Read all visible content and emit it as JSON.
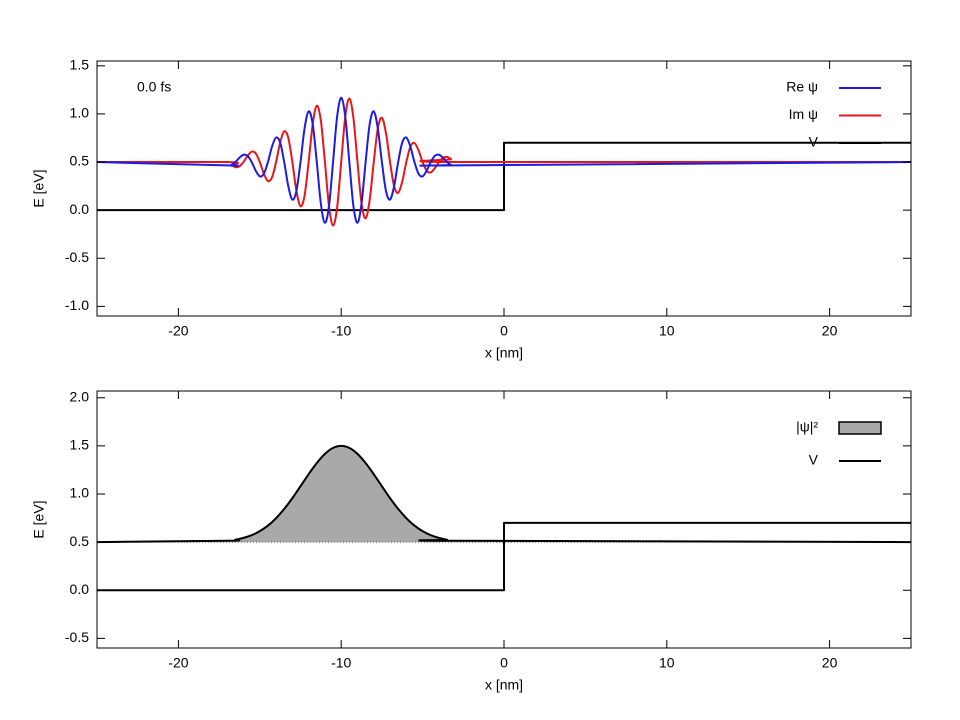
{
  "chart_data": [
    {
      "type": "line",
      "xlabel": "x [nm]",
      "ylabel": "E [eV]",
      "annotation": "0.0 fs",
      "legend": "top-right",
      "xlim": [
        -25,
        25
      ],
      "xticks": [
        -20,
        -10,
        0,
        10,
        20
      ],
      "ylim": [
        -1.1,
        1.55
      ],
      "yticks": [
        {
          "value": -1.0,
          "label": "-1.0"
        },
        -0.5,
        {
          "value": 0.0,
          "label": "0.0"
        },
        0.5,
        {
          "value": 1.0,
          "label": "1.0"
        },
        1.5
      ],
      "series": [
        {
          "name": "V",
          "color": "#000000",
          "x": [
            -25,
            0,
            0,
            25
          ],
          "values": [
            0,
            0,
            0.7,
            0.7
          ]
        },
        {
          "name": "Im ψ",
          "color": "#e8161b",
          "x": [
            -25,
            -17,
            -16.75,
            -16.5,
            -16.25,
            -16,
            -15.75,
            -15.5,
            -15.25,
            -15,
            -14.75,
            -14.5,
            -14.25,
            -14,
            -13.75,
            -13.5,
            -13.25,
            -13,
            -12.75,
            -12.5,
            -12.25,
            -12,
            -11.75,
            -11.5,
            -11.25,
            -11,
            -10.75,
            -10.5,
            -10.25,
            -10,
            -9.75,
            -9.5,
            -9.25,
            -9,
            -8.75,
            -8.5,
            -8.25,
            -8,
            -7.75,
            -7.5,
            -7.25,
            -7,
            -6.75,
            -6.5,
            -6.25,
            -6,
            -5.75,
            -5.5,
            -5.25,
            -5,
            -4.75,
            -4.5,
            -4.25,
            -4,
            -3.75,
            -3.5,
            -3.25,
            -3,
            25
          ],
          "values": [
            0.5,
            0.5,
            0.47,
            0.447,
            0.455,
            0.5,
            0.564,
            0.608,
            0.59,
            0.5,
            0.378,
            0.302,
            0.34,
            0.5,
            0.703,
            0.82,
            0.751,
            0.5,
            0.2,
            0.04,
            0.151,
            0.5,
            0.894,
            1.085,
            0.931,
            0.5,
            0.042,
            -0.16,
            0.028,
            0.5,
            0.972,
            1.16,
            0.958,
            0.5,
            0.069,
            -0.085,
            0.106,
            0.5,
            0.849,
            0.96,
            0.8,
            0.5,
            0.249,
            0.18,
            0.297,
            0.5,
            0.66,
            0.698,
            0.622,
            0.5,
            0.41,
            0.392,
            0.436,
            0.5,
            0.545,
            0.553,
            0.53,
            0.5,
            0.5
          ]
        },
        {
          "name": "Re ψ",
          "color": "#1c1ce0",
          "x": [
            -25,
            -17,
            -16.75,
            -16.5,
            -16.25,
            -16,
            -15.75,
            -15.5,
            -15.25,
            -15,
            -14.75,
            -14.5,
            -14.25,
            -14,
            -13.75,
            -13.5,
            -13.25,
            -13,
            -12.75,
            -12.5,
            -12.25,
            -12,
            -11.75,
            -11.5,
            -11.25,
            -11,
            -10.75,
            -10.5,
            -10.25,
            -10,
            -9.75,
            -9.5,
            -9.25,
            -9,
            -8.75,
            -8.5,
            -8.25,
            -8,
            -7.75,
            -7.5,
            -7.25,
            -7,
            -6.75,
            -6.5,
            -6.25,
            -6,
            -5.75,
            -5.5,
            -5.25,
            -5,
            -4.75,
            -4.5,
            -4.25,
            -4,
            -3.75,
            -3.5,
            -3.25,
            -3,
            25
          ],
          "values": [
            0.5,
            0.465,
            0.47,
            0.5,
            0.545,
            0.576,
            0.564,
            0.5,
            0.41,
            0.351,
            0.378,
            0.5,
            0.66,
            0.755,
            0.703,
            0.5,
            0.249,
            0.11,
            0.2,
            0.5,
            0.849,
            1.027,
            0.894,
            0.5,
            0.069,
            -0.131,
            0.042,
            0.5,
            0.972,
            1.17,
            0.972,
            0.5,
            0.042,
            -0.131,
            0.069,
            0.5,
            0.894,
            1.027,
            0.849,
            0.5,
            0.2,
            0.11,
            0.249,
            0.5,
            0.703,
            0.755,
            0.66,
            0.5,
            0.378,
            0.351,
            0.41,
            0.5,
            0.564,
            0.576,
            0.545,
            0.5,
            0.47,
            0.465,
            0.5
          ]
        }
      ],
      "legend_order": [
        2,
        1,
        0
      ]
    },
    {
      "type": "area",
      "xlabel": "x [nm]",
      "ylabel": "E [eV]",
      "legend": "top-right",
      "xlim": [
        -25,
        25
      ],
      "xticks": [
        -20,
        -10,
        0,
        10,
        20
      ],
      "ylim": [
        -0.6,
        2.07
      ],
      "yticks": [
        -0.5,
        {
          "value": 0.0,
          "label": "0.0"
        },
        0.5,
        {
          "value": 1.0,
          "label": "1.0"
        },
        1.5,
        {
          "value": 2.0,
          "label": "2.0"
        }
      ],
      "series": [
        {
          "name": "|ψ|²",
          "color": "#000000",
          "fill_color": "#a9a9a9",
          "baseline": 0.5,
          "x": [
            -25,
            -17,
            -16.5,
            -16,
            -15.5,
            -15,
            -14.5,
            -14,
            -13.5,
            -13,
            -12.5,
            -12,
            -11.5,
            -11,
            -10.5,
            -10,
            -9.5,
            -9,
            -8.5,
            -8,
            -7.5,
            -7,
            -6.5,
            -6,
            -5.5,
            -5,
            -4.5,
            -4,
            -3.5,
            -3,
            25
          ],
          "values": [
            0.5,
            0.514,
            0.525,
            0.544,
            0.572,
            0.614,
            0.672,
            0.749,
            0.845,
            0.957,
            1.081,
            1.206,
            1.322,
            1.417,
            1.479,
            1.5,
            1.479,
            1.417,
            1.322,
            1.206,
            1.081,
            0.957,
            0.845,
            0.749,
            0.672,
            0.614,
            0.572,
            0.544,
            0.525,
            0.514,
            0.5
          ]
        },
        {
          "name": "V",
          "color": "#000000",
          "x": [
            -25,
            0,
            0,
            25
          ],
          "values": [
            0,
            0,
            0.7,
            0.7
          ]
        }
      ],
      "legend_order": [
        0,
        1
      ]
    }
  ]
}
